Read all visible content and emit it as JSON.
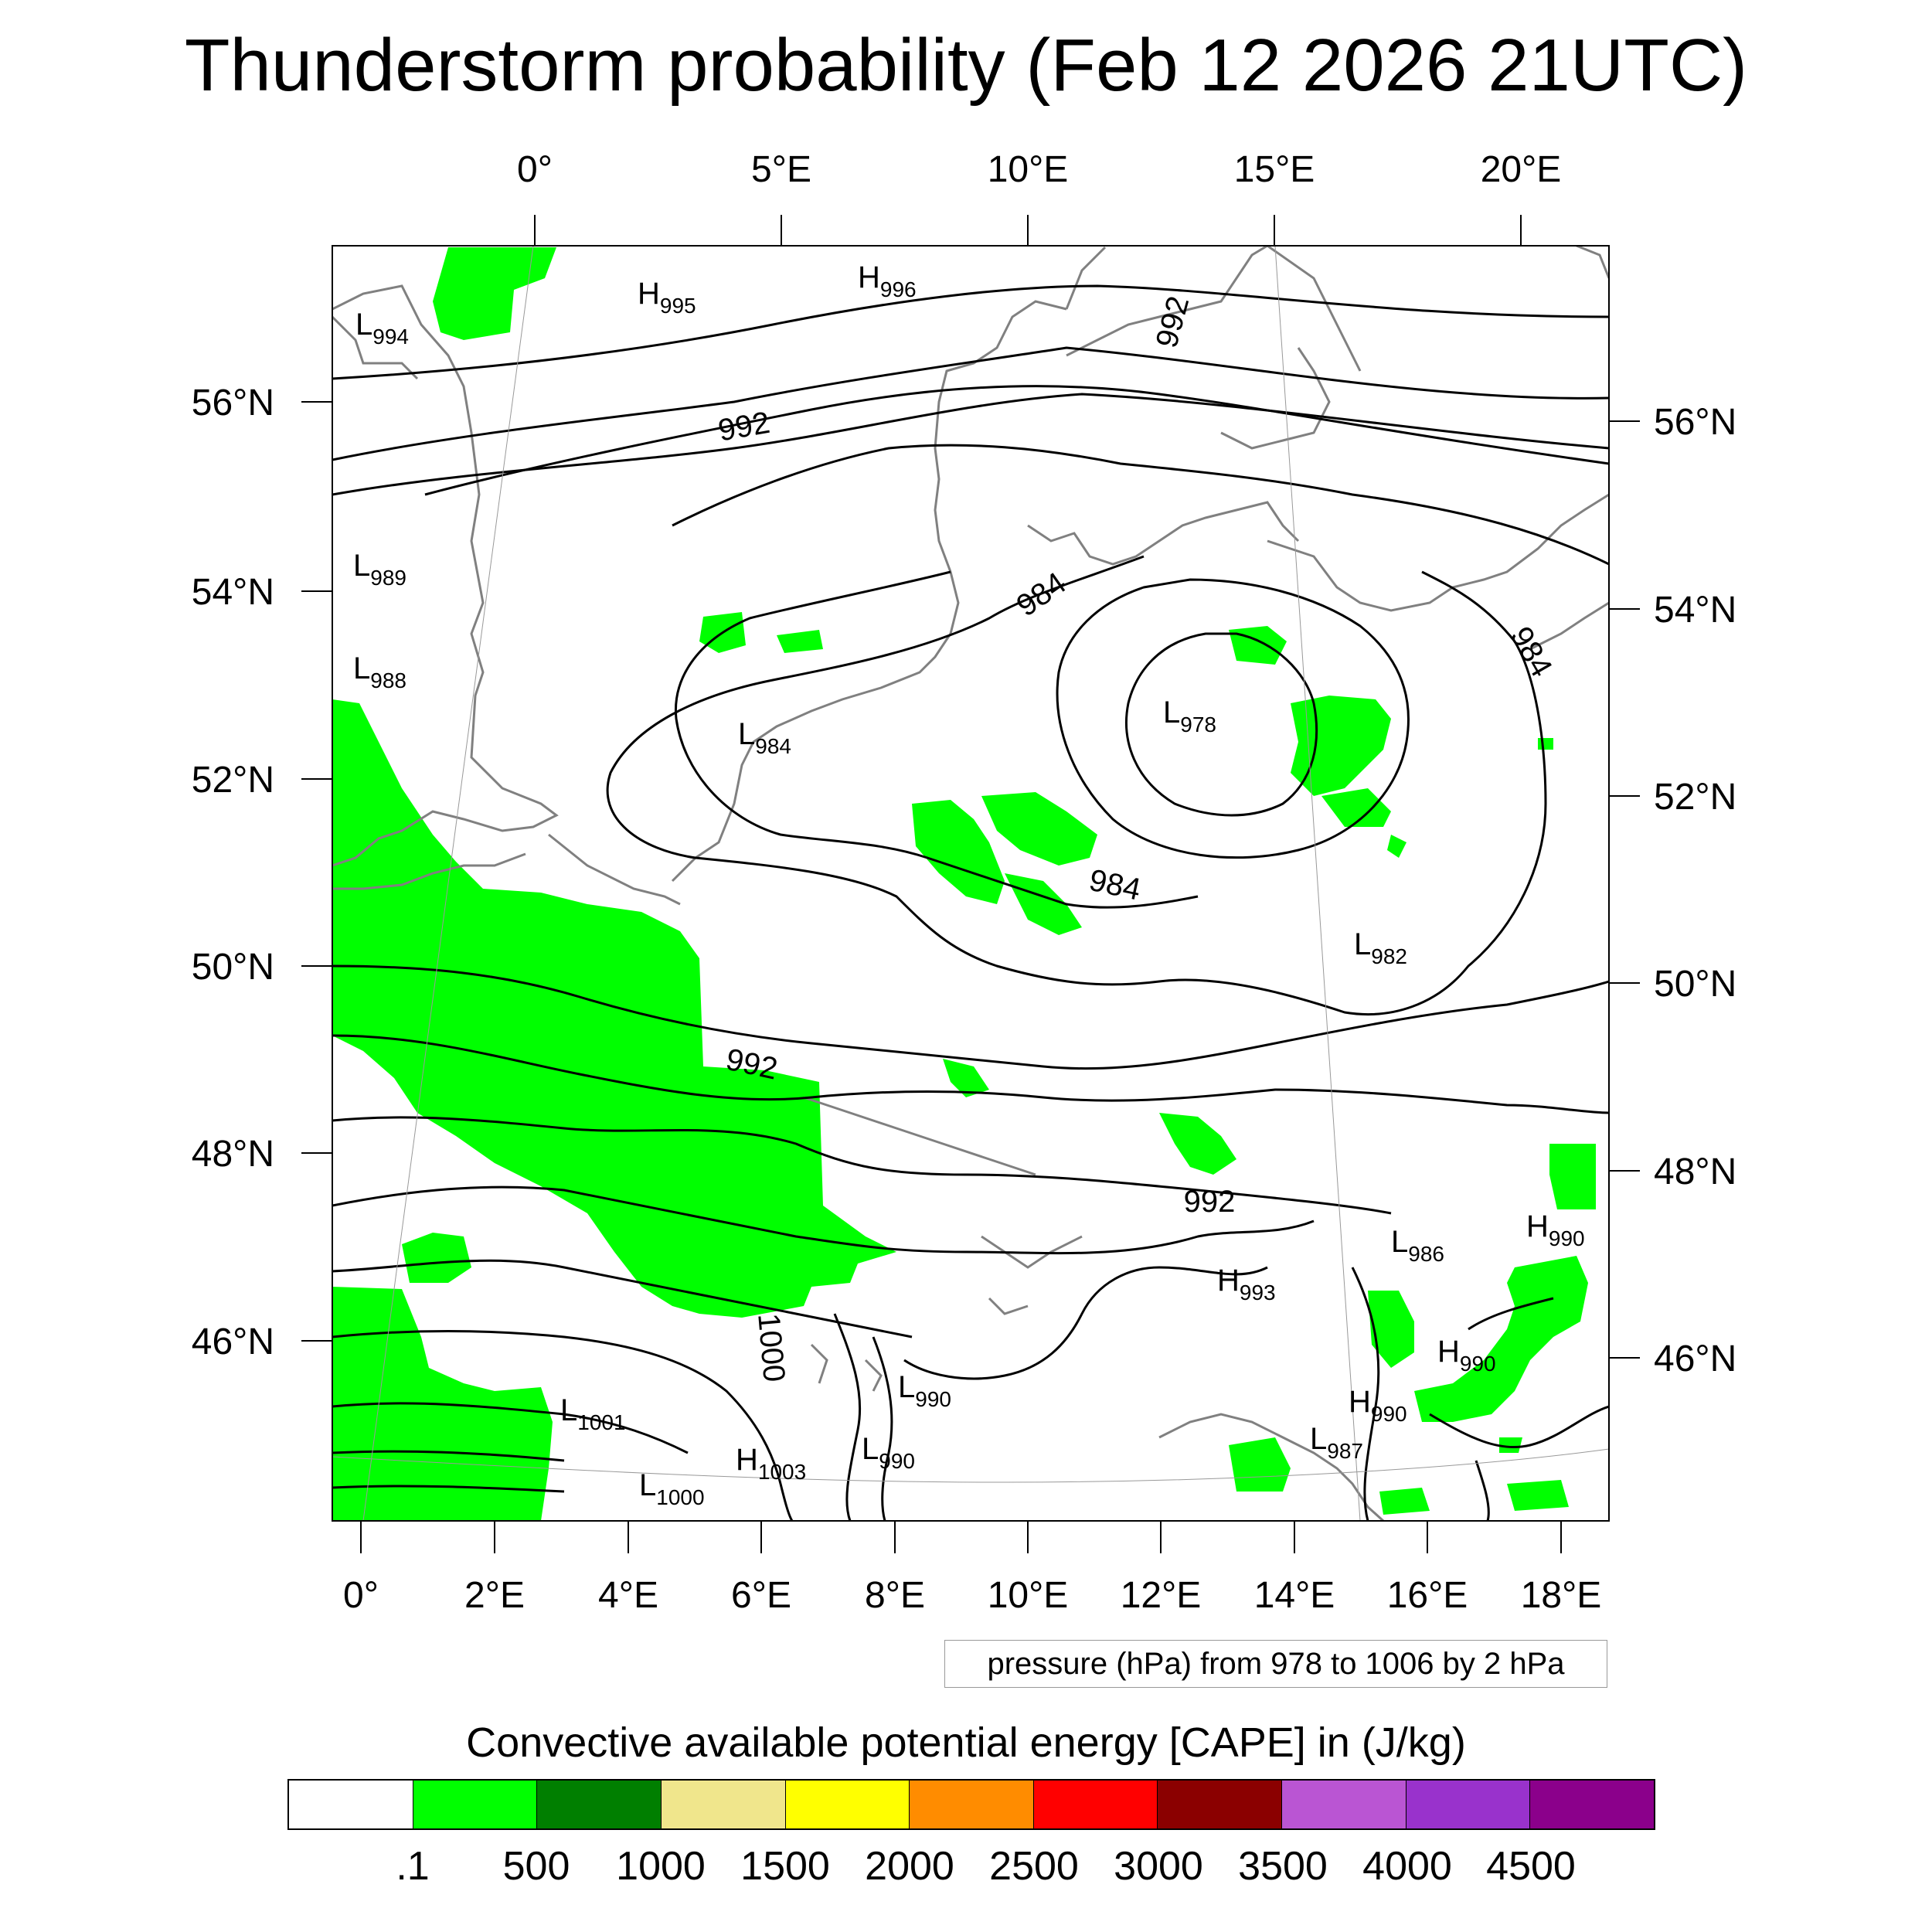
{
  "title": "Thunderstorm probability (Feb 12 2026 21UTC)",
  "top_lon_labels": [
    "0°",
    "5°E",
    "10°E",
    "15°E",
    "20°E"
  ],
  "bottom_lon_labels": [
    "0°",
    "2°E",
    "4°E",
    "6°E",
    "8°E",
    "10°E",
    "12°E",
    "14°E",
    "16°E",
    "18°E"
  ],
  "left_lat_labels": [
    "56°N",
    "54°N",
    "52°N",
    "50°N",
    "48°N",
    "46°N"
  ],
  "right_lat_labels": [
    "56°N",
    "54°N",
    "52°N",
    "50°N",
    "48°N",
    "46°N"
  ],
  "contour_labels": [
    "992",
    "992",
    "984",
    "984",
    "984",
    "992",
    "992",
    "1000"
  ],
  "pressure_centers": [
    {
      "type": "H",
      "value": "995"
    },
    {
      "type": "H",
      "value": "996"
    },
    {
      "type": "L",
      "value": "994"
    },
    {
      "type": "L",
      "value": "989"
    },
    {
      "type": "L",
      "value": "988"
    },
    {
      "type": "L",
      "value": "984"
    },
    {
      "type": "L",
      "value": "978"
    },
    {
      "type": "L",
      "value": "982"
    },
    {
      "type": "L",
      "value": "986"
    },
    {
      "type": "H",
      "value": "990"
    },
    {
      "type": "H",
      "value": "993"
    },
    {
      "type": "H",
      "value": "990"
    },
    {
      "type": "H",
      "value": "990"
    },
    {
      "type": "L",
      "value": "987"
    },
    {
      "type": "L",
      "value": "990"
    },
    {
      "type": "L",
      "value": "990"
    },
    {
      "type": "L",
      "value": "1001"
    },
    {
      "type": "H",
      "value": "1003"
    },
    {
      "type": "L",
      "value": "1000"
    }
  ],
  "contour_note": "pressure (hPa) from 978 to 1006 by 2 hPa",
  "colorbar": {
    "title": "Convective available potential energy [CAPE] in (J/kg)",
    "colors": [
      "#ffffff",
      "#00ff00",
      "#007f00",
      "#f0e68c",
      "#ffff00",
      "#ff8c00",
      "#ff0000",
      "#8b0000",
      "#ba55d3",
      "#9932cc",
      "#8b008b"
    ],
    "labels": [
      ".1",
      "500",
      "1000",
      "1500",
      "2000",
      "2500",
      "3000",
      "3500",
      "4000",
      "4500"
    ]
  },
  "colors": {
    "cape_fill": "#00ff00",
    "coastline": "#808080",
    "isobar": "#000000"
  }
}
